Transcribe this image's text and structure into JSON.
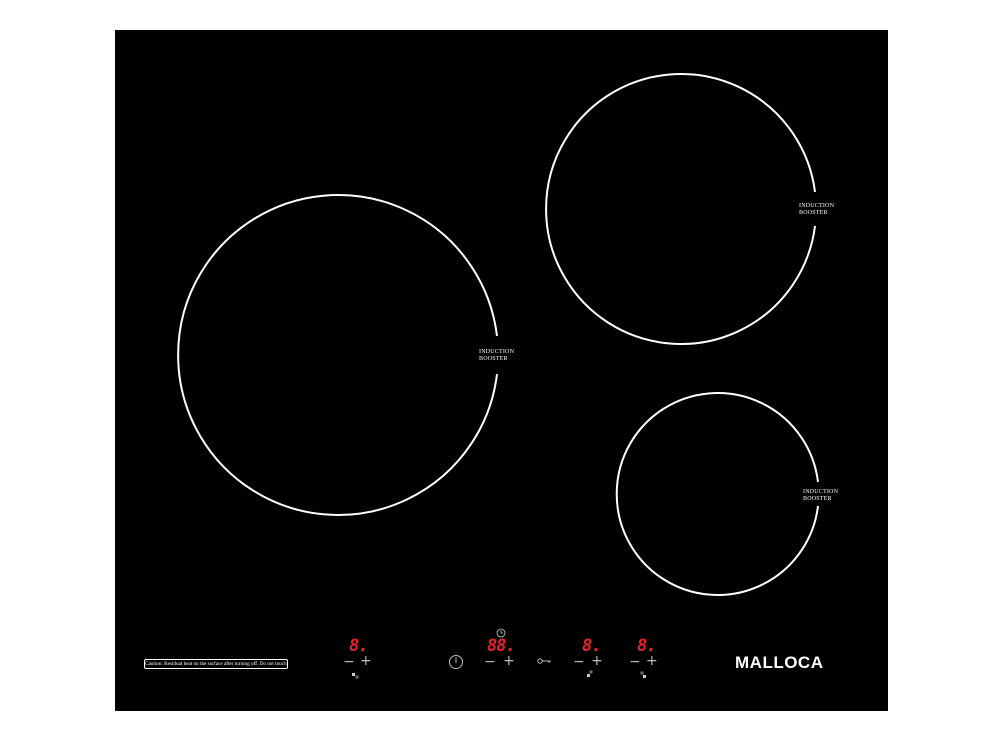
{
  "brand": {
    "name": "MALLOCA"
  },
  "colors": {
    "glass": "#000000",
    "ring": "#ffffff",
    "display": "#e8232d"
  },
  "zones": [
    {
      "booster_line1": "INDUCTION",
      "booster_line2": "BOOSTER"
    },
    {
      "booster_line1": "INDUCTION",
      "booster_line2": "BOOSTER"
    },
    {
      "booster_line1": "INDUCTION",
      "booster_line2": "BOOSTER"
    }
  ],
  "caution": {
    "text": "Caution: Residual heat on the surface after turning off. Do not touch!"
  },
  "controls": {
    "displays": [
      "8.",
      "88.",
      "8.",
      "8."
    ],
    "minus": "−",
    "plus": "+",
    "power_icon": "power-icon",
    "timer_icon": "timer-icon",
    "lock_icon": "key-lock-icon"
  }
}
